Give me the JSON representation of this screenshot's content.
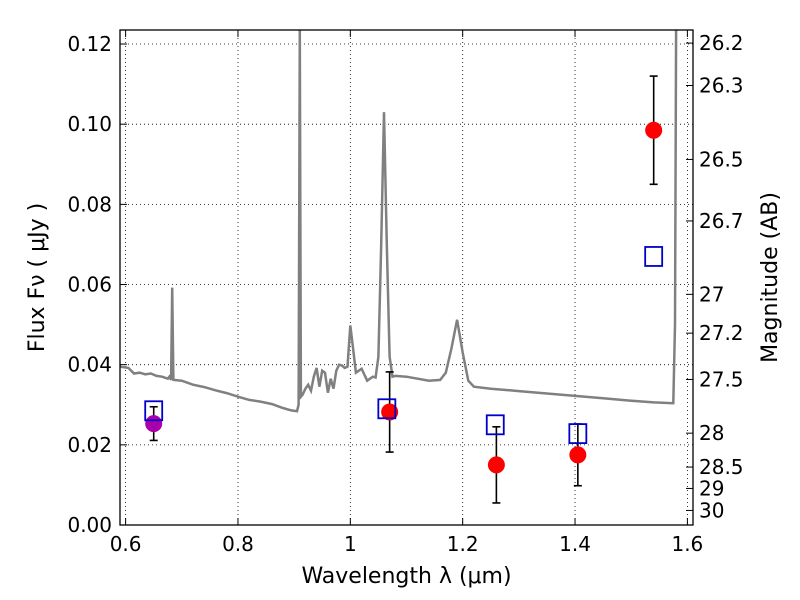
{
  "chart_data": {
    "type": "scatter",
    "xlabel": "Wavelength  λ (μm)",
    "ylabel": "Flux  Fν  ( μJy )",
    "ylabel_right": "Magnitude (AB)",
    "xlim": [
      0.59,
      1.61
    ],
    "ylim": [
      0.0,
      0.1235
    ],
    "grid": true,
    "x_ticks": [
      {
        "value": 0.6,
        "label": "0.6"
      },
      {
        "value": 0.8,
        "label": "0.8"
      },
      {
        "value": 1.0,
        "label": "1"
      },
      {
        "value": 1.2,
        "label": "1.2"
      },
      {
        "value": 1.4,
        "label": "1.4"
      },
      {
        "value": 1.6,
        "label": "1.6"
      }
    ],
    "y_ticks": [
      {
        "value": 0.0,
        "label": "0.00"
      },
      {
        "value": 0.02,
        "label": "0.02"
      },
      {
        "value": 0.04,
        "label": "0.04"
      },
      {
        "value": 0.06,
        "label": "0.06"
      },
      {
        "value": 0.08,
        "label": "0.08"
      },
      {
        "value": 0.1,
        "label": "0.10"
      },
      {
        "value": 0.12,
        "label": "0.12"
      }
    ],
    "mag_ticks": [
      {
        "value": 26.2,
        "label": "26.2"
      },
      {
        "value": 26.3,
        "label": "26.3"
      },
      {
        "value": 26.5,
        "label": "26.5"
      },
      {
        "value": 26.7,
        "label": "26.7"
      },
      {
        "value": 27.0,
        "label": "27"
      },
      {
        "value": 27.2,
        "label": "27.2"
      },
      {
        "value": 27.5,
        "label": "27.5"
      },
      {
        "value": 28.0,
        "label": "28"
      },
      {
        "value": 28.5,
        "label": "28.5"
      },
      {
        "value": 29.0,
        "label": "29"
      },
      {
        "value": 30.0,
        "label": "30"
      }
    ],
    "model_spectrum": {
      "color": "#808080",
      "points": [
        [
          0.59,
          0.0395
        ],
        [
          0.605,
          0.0392
        ],
        [
          0.615,
          0.0378
        ],
        [
          0.625,
          0.038
        ],
        [
          0.635,
          0.0376
        ],
        [
          0.645,
          0.0378
        ],
        [
          0.655,
          0.0372
        ],
        [
          0.665,
          0.037
        ],
        [
          0.675,
          0.0365
        ],
        [
          0.678,
          0.037
        ],
        [
          0.681,
          0.0362
        ],
        [
          0.683,
          0.0592
        ],
        [
          0.685,
          0.0362
        ],
        [
          0.7,
          0.036
        ],
        [
          0.72,
          0.035
        ],
        [
          0.74,
          0.0344
        ],
        [
          0.76,
          0.0336
        ],
        [
          0.78,
          0.0329
        ],
        [
          0.8,
          0.032
        ],
        [
          0.82,
          0.0312
        ],
        [
          0.84,
          0.0308
        ],
        [
          0.86,
          0.0302
        ],
        [
          0.88,
          0.0292
        ],
        [
          0.895,
          0.0286
        ],
        [
          0.905,
          0.0284
        ],
        [
          0.908,
          0.03
        ],
        [
          0.91,
          0.1235
        ],
        [
          0.912,
          0.032
        ],
        [
          0.915,
          0.0325
        ],
        [
          0.92,
          0.034
        ],
        [
          0.925,
          0.035
        ],
        [
          0.93,
          0.0335
        ],
        [
          0.935,
          0.037
        ],
        [
          0.94,
          0.0392
        ],
        [
          0.945,
          0.0345
        ],
        [
          0.95,
          0.0385
        ],
        [
          0.955,
          0.038
        ],
        [
          0.96,
          0.033
        ],
        [
          0.965,
          0.0365
        ],
        [
          0.97,
          0.034
        ],
        [
          0.975,
          0.0385
        ],
        [
          0.98,
          0.04
        ],
        [
          0.985,
          0.0398
        ],
        [
          0.99,
          0.0392
        ],
        [
          0.995,
          0.0395
        ],
        [
          1.0,
          0.0498
        ],
        [
          1.005,
          0.044
        ],
        [
          1.01,
          0.038
        ],
        [
          1.02,
          0.039
        ],
        [
          1.03,
          0.036
        ],
        [
          1.04,
          0.037
        ],
        [
          1.045,
          0.0368
        ],
        [
          1.05,
          0.042
        ],
        [
          1.055,
          0.07
        ],
        [
          1.06,
          0.103
        ],
        [
          1.065,
          0.07
        ],
        [
          1.07,
          0.042
        ],
        [
          1.075,
          0.037
        ],
        [
          1.08,
          0.0372
        ],
        [
          1.1,
          0.037
        ],
        [
          1.14,
          0.036
        ],
        [
          1.16,
          0.0362
        ],
        [
          1.17,
          0.038
        ],
        [
          1.18,
          0.044
        ],
        [
          1.19,
          0.0512
        ],
        [
          1.2,
          0.043
        ],
        [
          1.21,
          0.036
        ],
        [
          1.22,
          0.0345
        ],
        [
          1.25,
          0.034
        ],
        [
          1.3,
          0.0334
        ],
        [
          1.35,
          0.0328
        ],
        [
          1.4,
          0.0322
        ],
        [
          1.45,
          0.0316
        ],
        [
          1.5,
          0.031
        ],
        [
          1.54,
          0.0306
        ],
        [
          1.575,
          0.0304
        ],
        [
          1.578,
          0.05
        ],
        [
          1.58,
          0.1235
        ]
      ]
    },
    "series": [
      {
        "name": "",
        "marker": "circle",
        "color": "#aa00aa",
        "points": [
          {
            "x": 0.65,
            "y": 0.0253,
            "err": 0.0042
          }
        ]
      },
      {
        "name": "",
        "marker": "circle",
        "color": "#ff0000",
        "points": [
          {
            "x": 1.07,
            "y": 0.0282,
            "err": 0.01
          },
          {
            "x": 1.26,
            "y": 0.015,
            "err": 0.0095
          },
          {
            "x": 1.405,
            "y": 0.0175,
            "err": 0.0077
          },
          {
            "x": 1.54,
            "y": 0.0985,
            "err": 0.0135
          }
        ]
      },
      {
        "name": "",
        "marker": "open-square",
        "color": "#0000cc",
        "points": [
          {
            "x": 0.65,
            "y": 0.0285
          },
          {
            "x": 1.065,
            "y": 0.029
          },
          {
            "x": 1.258,
            "y": 0.025
          },
          {
            "x": 1.405,
            "y": 0.0228
          },
          {
            "x": 1.54,
            "y": 0.067
          }
        ]
      }
    ]
  }
}
